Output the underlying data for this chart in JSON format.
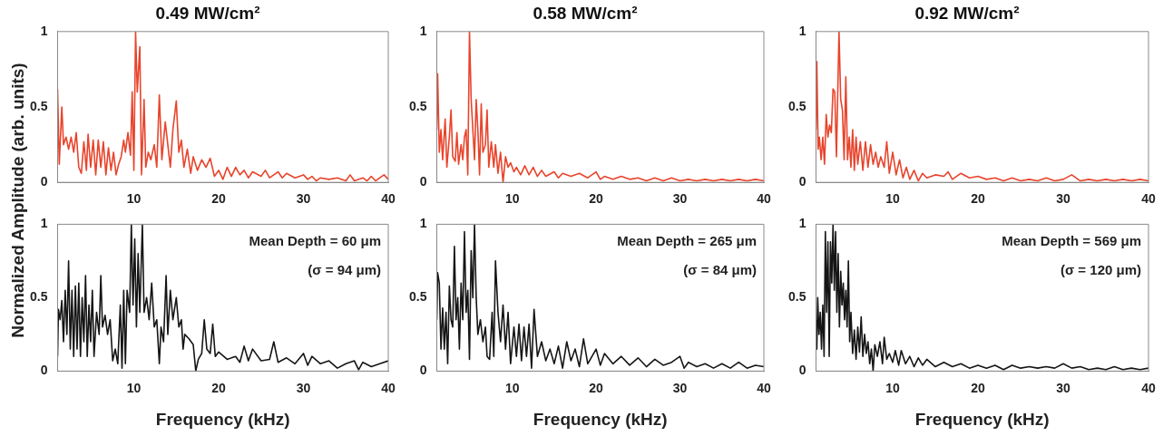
{
  "chart_data": [
    {
      "type": "line",
      "title": "0.49 MW/cm²",
      "ylabel": "Normalized Amplitude (arb. units)",
      "color": "#e8442c",
      "xlim": [
        1,
        40
      ],
      "xticks": [
        10,
        20,
        30,
        40
      ],
      "ylim": [
        0,
        1
      ],
      "yticks": [
        0,
        0.5,
        1
      ],
      "x": [
        1,
        1.2,
        1.5,
        1.7,
        2,
        2.3,
        2.6,
        2.9,
        3.2,
        3.5,
        3.8,
        4.1,
        4.4,
        4.6,
        4.9,
        5.2,
        5.5,
        5.8,
        6.1,
        6.4,
        6.7,
        7,
        7.3,
        7.6,
        7.9,
        8.2,
        8.5,
        8.8,
        9,
        9.3,
        9.6,
        9.8,
        10,
        10.2,
        10.4,
        10.7,
        10.9,
        11.2,
        11.4,
        11.7,
        12,
        12.4,
        12.7,
        13,
        13.3,
        13.7,
        14,
        14.3,
        14.6,
        15,
        15.3,
        15.6,
        15.9,
        16.3,
        16.7,
        17,
        17.5,
        18,
        18.5,
        19,
        19.5,
        20,
        20.5,
        21,
        21.5,
        22,
        22.5,
        23,
        23.5,
        24,
        25,
        25.5,
        26,
        27,
        27.5,
        28,
        29,
        30,
        30.5,
        31,
        31.5,
        32,
        33,
        34,
        35,
        35.5,
        36,
        37,
        37.5,
        38,
        38.5,
        39,
        39.5,
        40
      ],
      "values": [
        0.62,
        0.12,
        0.5,
        0.25,
        0.3,
        0.22,
        0.3,
        0.2,
        0.33,
        0.1,
        0.06,
        0.27,
        0.08,
        0.32,
        0.1,
        0.28,
        0.05,
        0.28,
        0.1,
        0.27,
        0.05,
        0.23,
        0.08,
        0.2,
        0.05,
        0.12,
        0.17,
        0.28,
        0.2,
        0.33,
        0.18,
        0.6,
        0.08,
        1,
        0.6,
        0.9,
        0.05,
        0.55,
        0.1,
        0.2,
        0.15,
        0.25,
        0.1,
        0.58,
        0.15,
        0.4,
        0.25,
        0.1,
        0.35,
        0.54,
        0.2,
        0.28,
        0.1,
        0.22,
        0.06,
        0.17,
        0.08,
        0.15,
        0.1,
        0.16,
        0.04,
        0.08,
        0.02,
        0.1,
        0.04,
        0.1,
        0.05,
        0.08,
        0.03,
        0.07,
        0.04,
        0.08,
        0.03,
        0.07,
        0.03,
        0.06,
        0.03,
        0.05,
        0.02,
        0.04,
        0.01,
        0.03,
        0.02,
        0.03,
        0.01,
        0.05,
        0.01,
        0.03,
        0.01,
        0.04,
        0.01,
        0.03,
        0.05,
        0.02
      ]
    },
    {
      "type": "line",
      "title": "0.58 MW/cm²",
      "color": "#e8442c",
      "xlim": [
        1,
        40
      ],
      "xticks": [
        10,
        20,
        30,
        40
      ],
      "ylim": [
        0,
        1
      ],
      "yticks": [
        0,
        0.5,
        1
      ],
      "x": [
        1,
        1.1,
        1.3,
        1.5,
        1.7,
        2,
        2.2,
        2.5,
        2.7,
        2.9,
        3.2,
        3.4,
        3.6,
        3.9,
        4.1,
        4.3,
        4.5,
        4.7,
        4.9,
        5.1,
        5.3,
        5.5,
        5.7,
        5.9,
        6.1,
        6.3,
        6.5,
        6.8,
        7,
        7.2,
        7.5,
        7.8,
        8,
        8.3,
        8.6,
        8.9,
        9.2,
        9.5,
        9.8,
        10.2,
        10.5,
        11,
        11.5,
        12,
        12.5,
        13,
        13.5,
        14,
        15,
        15.5,
        16,
        17,
        18,
        19,
        20,
        20.5,
        21,
        22,
        23,
        24,
        25,
        26,
        27,
        28,
        29,
        30,
        31,
        32,
        33,
        34,
        35,
        36,
        37,
        38,
        39,
        40
      ],
      "values": [
        0.35,
        0.72,
        0.2,
        0.35,
        0.15,
        0.42,
        0.1,
        0.3,
        0.48,
        0.17,
        0.14,
        0.33,
        0.12,
        0.25,
        0.15,
        0.3,
        0.35,
        0.05,
        1,
        0.55,
        0.35,
        0.15,
        0.55,
        0.35,
        0.05,
        0.52,
        0.2,
        0.25,
        0.48,
        0.1,
        0.27,
        0.1,
        0.25,
        0.06,
        0.2,
        0,
        0.17,
        0.1,
        0.13,
        0.07,
        0.1,
        0.05,
        0.11,
        0.05,
        0.1,
        0.04,
        0.08,
        0.04,
        0.07,
        0.03,
        0.06,
        0.04,
        0.06,
        0.03,
        0.07,
        0.02,
        0.04,
        0.02,
        0.04,
        0.02,
        0.03,
        0.01,
        0.03,
        0.01,
        0.03,
        0.01,
        0.02,
        0.01,
        0.02,
        0.01,
        0.02,
        0.01,
        0.02,
        0.01,
        0.02,
        0.01
      ]
    },
    {
      "type": "line",
      "title": "0.92 MW/cm²",
      "color": "#e8442c",
      "xlim": [
        1,
        40
      ],
      "xticks": [
        10,
        20,
        30,
        40
      ],
      "ylim": [
        0,
        1
      ],
      "yticks": [
        0,
        0.5,
        1
      ],
      "x": [
        1,
        1.1,
        1.25,
        1.4,
        1.6,
        1.8,
        2,
        2.2,
        2.4,
        2.6,
        2.8,
        3,
        3.2,
        3.4,
        3.7,
        3.9,
        4.1,
        4.3,
        4.5,
        4.7,
        4.9,
        5.1,
        5.3,
        5.5,
        5.7,
        5.9,
        6.2,
        6.5,
        6.8,
        7.1,
        7.4,
        7.7,
        8,
        8.3,
        8.6,
        9,
        9.3,
        9.6,
        10,
        10.4,
        10.8,
        11.2,
        11.6,
        12,
        12.5,
        13,
        13.5,
        14,
        15,
        16,
        16.5,
        17,
        18,
        19,
        20,
        21,
        22,
        23,
        24,
        25,
        26,
        27,
        28,
        29,
        30,
        31,
        32,
        33,
        34,
        35,
        36,
        37,
        38,
        39,
        40
      ],
      "values": [
        0.35,
        0.8,
        0.22,
        0.3,
        0.15,
        0.3,
        0.12,
        0.45,
        0.3,
        0.38,
        0.33,
        0.62,
        0.6,
        0.17,
        1,
        0.55,
        0.48,
        0.15,
        0.7,
        0.15,
        0.3,
        0.1,
        0.35,
        0.08,
        0.3,
        0.12,
        0.27,
        0.08,
        0.27,
        0.1,
        0.25,
        0.12,
        0.2,
        0.1,
        0.17,
        0.1,
        0.27,
        0.06,
        0.2,
        0.05,
        0.15,
        0.03,
        0.1,
        0.02,
        0.08,
        0.01,
        0.06,
        0.03,
        0.05,
        0.04,
        0.07,
        0.02,
        0.06,
        0.03,
        0.04,
        0.02,
        0.03,
        0.01,
        0.03,
        0.01,
        0.02,
        0.01,
        0.03,
        0.01,
        0.02,
        0.05,
        0.01,
        0.02,
        0.01,
        0.02,
        0.01,
        0.02,
        0.01,
        0.02,
        0.01
      ]
    },
    {
      "type": "line",
      "xlabel": "Frequency (kHz)",
      "annotations": [
        "Mean Depth = 60 μm",
        "(σ = 94 μm)"
      ],
      "color": "#151515",
      "xlim": [
        1,
        40
      ],
      "xticks": [
        10,
        20,
        30,
        40
      ],
      "ylim": [
        0,
        1
      ],
      "yticks": [
        0,
        0.5,
        1
      ],
      "x": [
        1,
        1.1,
        1.3,
        1.5,
        1.7,
        1.9,
        2.1,
        2.3,
        2.5,
        2.7,
        2.9,
        3.1,
        3.3,
        3.5,
        3.7,
        3.9,
        4.1,
        4.3,
        4.5,
        4.7,
        4.9,
        5.1,
        5.3,
        5.6,
        5.9,
        6.1,
        6.3,
        6.6,
        6.9,
        7.2,
        7.5,
        7.8,
        8.1,
        8.4,
        8.6,
        8.8,
        9,
        9.2,
        9.5,
        9.7,
        9.9,
        10.1,
        10.3,
        10.5,
        10.7,
        11,
        11.2,
        11.5,
        11.8,
        12.1,
        12.4,
        12.7,
        13,
        13.2,
        13.5,
        13.8,
        14,
        14.3,
        14.6,
        15,
        15.3,
        15.6,
        15.8,
        16,
        16.5,
        17,
        17.3,
        17.6,
        18,
        18.3,
        18.6,
        19,
        19.3,
        19.6,
        20,
        21,
        22,
        22.5,
        23,
        23.5,
        24,
        25,
        26,
        26.5,
        27,
        28,
        29,
        30,
        30.5,
        31,
        32,
        33,
        34,
        35,
        36,
        36.5,
        37,
        38,
        39,
        40
      ],
      "values": [
        0.1,
        0.42,
        0.35,
        0.48,
        0.2,
        0.55,
        0.25,
        0.75,
        0.15,
        0.55,
        0.1,
        0.58,
        0.15,
        0.6,
        0.1,
        0.5,
        0.2,
        0.65,
        0.1,
        0.45,
        0.2,
        0.55,
        0.1,
        0.4,
        0.25,
        0.65,
        0.3,
        0.38,
        0.25,
        0.35,
        0.07,
        0.15,
        0.05,
        0.45,
        0.02,
        0.55,
        0.05,
        0.55,
        0.4,
        1,
        0.45,
        0.9,
        0.3,
        0.8,
        0.4,
        1,
        0.4,
        0.5,
        0.35,
        0.6,
        0.3,
        0.35,
        0.05,
        0.3,
        0.2,
        0.65,
        0.25,
        0.55,
        0.35,
        0.5,
        0.3,
        0.35,
        0.15,
        0.25,
        0.22,
        0.18,
        0,
        0.08,
        0.12,
        0.35,
        0.15,
        0.12,
        0.32,
        0.1,
        0.13,
        0.08,
        0.1,
        0.06,
        0.17,
        0.07,
        0.15,
        0.07,
        0.08,
        0.2,
        0.06,
        0.09,
        0.05,
        0.12,
        0.04,
        0.1,
        0.05,
        0.07,
        0.02,
        0.05,
        0.07,
        0.01,
        0.06,
        0.03,
        0.05,
        0.07
      ]
    },
    {
      "type": "line",
      "xlabel": "Frequency (kHz)",
      "annotations": [
        "Mean Depth = 265 μm",
        "(σ = 84 μm)"
      ],
      "color": "#151515",
      "xlim": [
        1,
        40
      ],
      "xticks": [
        10,
        20,
        30,
        40
      ],
      "ylim": [
        0,
        1
      ],
      "yticks": [
        0,
        0.5,
        1
      ],
      "x": [
        1,
        1.1,
        1.3,
        1.5,
        1.7,
        1.9,
        2.1,
        2.3,
        2.5,
        2.7,
        2.9,
        3.1,
        3.3,
        3.5,
        3.7,
        3.9,
        4.1,
        4.3,
        4.5,
        4.7,
        4.9,
        5.1,
        5.3,
        5.5,
        5.7,
        5.9,
        6.2,
        6.5,
        6.8,
        7,
        7.3,
        7.6,
        7.8,
        8,
        8.3,
        8.6,
        8.9,
        9.2,
        9.5,
        9.8,
        10.2,
        10.5,
        10.8,
        11.1,
        11.4,
        11.7,
        12,
        12.3,
        12.6,
        13,
        13.5,
        14,
        14.5,
        15,
        15.5,
        16,
        16.5,
        17,
        17.5,
        18,
        18.5,
        19,
        20,
        20.5,
        21,
        22,
        23,
        24,
        25,
        26,
        27,
        28,
        29,
        30,
        30.5,
        31,
        32,
        33,
        34,
        35,
        36,
        37,
        38,
        39,
        40
      ],
      "values": [
        0.35,
        0.67,
        0.6,
        0.15,
        0.43,
        0.15,
        0.4,
        0.05,
        0.58,
        0.35,
        0.3,
        0.85,
        0.35,
        0.5,
        0.15,
        0.6,
        0.35,
        0.95,
        0.4,
        0.55,
        0.08,
        0.82,
        0.5,
        1,
        0.5,
        0.25,
        0.35,
        0.2,
        0.3,
        0.1,
        0.08,
        0.4,
        0.1,
        0.75,
        0.4,
        0.2,
        0.45,
        0.15,
        0.4,
        0.05,
        0.3,
        0.1,
        0.32,
        0.07,
        0.3,
        0.1,
        0.32,
        0.02,
        0.42,
        0.1,
        0.2,
        0.07,
        0.15,
        0.05,
        0.17,
        0.02,
        0.2,
        0.07,
        0.15,
        0.03,
        0.22,
        0.05,
        0.15,
        0.04,
        0.12,
        0.05,
        0.1,
        0.04,
        0.09,
        0.03,
        0.08,
        0.04,
        0.06,
        0.1,
        0.02,
        0.06,
        0.03,
        0.05,
        0.02,
        0.05,
        0.02,
        0.06,
        0.02,
        0.04,
        0.03
      ]
    },
    {
      "type": "line",
      "xlabel": "Frequency (kHz)",
      "annotations": [
        "Mean Depth = 569 μm",
        "(σ = 120 μm)"
      ],
      "color": "#151515",
      "xlim": [
        1,
        40
      ],
      "xticks": [
        10,
        20,
        30,
        40
      ],
      "ylim": [
        0,
        1
      ],
      "yticks": [
        0,
        0.5,
        1
      ],
      "x": [
        1,
        1.1,
        1.2,
        1.35,
        1.5,
        1.65,
        1.8,
        1.95,
        2.1,
        2.25,
        2.4,
        2.55,
        2.7,
        2.85,
        3,
        3.15,
        3.3,
        3.45,
        3.6,
        3.75,
        3.9,
        4.05,
        4.2,
        4.35,
        4.5,
        4.65,
        4.8,
        4.95,
        5.1,
        5.3,
        5.5,
        5.7,
        5.9,
        6.1,
        6.3,
        6.5,
        6.7,
        6.9,
        7.1,
        7.3,
        7.5,
        7.7,
        7.9,
        8.2,
        8.5,
        8.8,
        9,
        9.3,
        9.6,
        10,
        10.3,
        10.7,
        11,
        11.5,
        12,
        12.5,
        13,
        13.5,
        14,
        15,
        16,
        17,
        18,
        19,
        20,
        21,
        22,
        23,
        24,
        25,
        26,
        27,
        28,
        29,
        30,
        31,
        32,
        33,
        34,
        35,
        36,
        37,
        38,
        39,
        40
      ],
      "values": [
        0.35,
        0.15,
        0.5,
        0.25,
        0.4,
        0.15,
        0.45,
        0.1,
        0.95,
        0.4,
        0.88,
        0.1,
        0.88,
        0.6,
        1,
        0.55,
        0.95,
        0.4,
        0.8,
        0.3,
        0.68,
        0.45,
        0.6,
        0.35,
        0.55,
        0.3,
        0.75,
        0.2,
        0.4,
        0.12,
        0.28,
        0.08,
        0.3,
        0.13,
        0.37,
        0.1,
        0.25,
        0.12,
        0.2,
        0.05,
        0.15,
        0,
        0.18,
        0.1,
        0.2,
        0.05,
        0.23,
        0.08,
        0.12,
        0.06,
        0.14,
        0.04,
        0.14,
        0.05,
        0.1,
        0.03,
        0.09,
        0.04,
        0.08,
        0.03,
        0.06,
        0.03,
        0.05,
        0.02,
        0.04,
        0.02,
        0.04,
        0.01,
        0.04,
        0.02,
        0.03,
        0.02,
        0.03,
        0.02,
        0.05,
        0.02,
        0.03,
        0.01,
        0.02,
        0.01,
        0.03,
        0.01,
        0.02,
        0.01,
        0.02
      ]
    }
  ]
}
